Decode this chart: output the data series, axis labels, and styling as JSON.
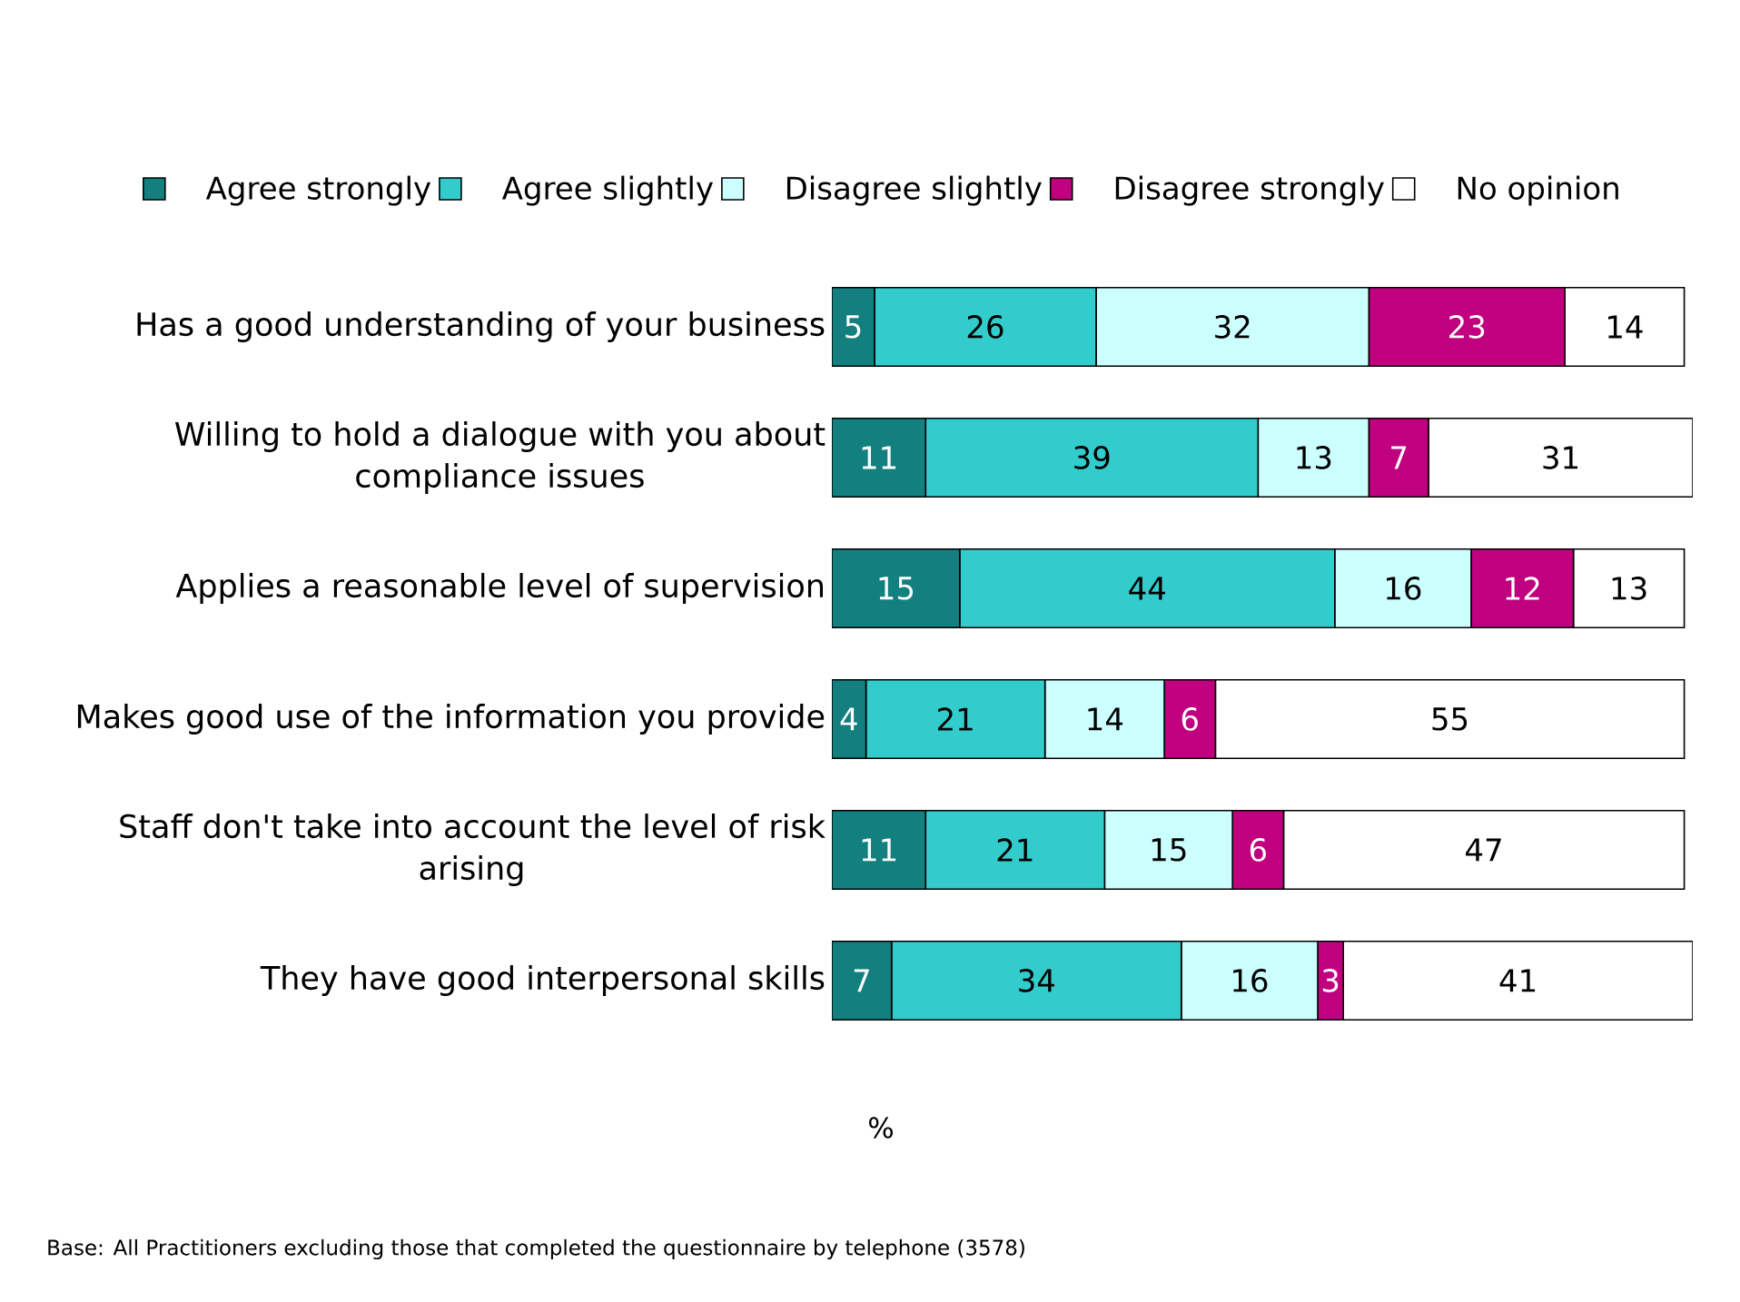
{
  "chart_data": {
    "type": "bar",
    "orientation": "horizontal",
    "stacked": true,
    "data_labels": true,
    "legend": "top",
    "xlabel": "%",
    "categories": [
      "Has a good understanding of your business",
      "Willing to hold a dialogue with you about compliance issues",
      "Applies a reasonable level of supervision",
      "Makes good use of the information you provide",
      "Staff don't take into account the level of risk arising",
      "They have good interpersonal skills"
    ],
    "series": [
      {
        "name": "Agree strongly",
        "color": "#137f7f",
        "values": [
          5,
          11,
          15,
          4,
          11,
          7
        ]
      },
      {
        "name": "Agree slightly",
        "color": "#33cccc",
        "values": [
          26,
          39,
          44,
          21,
          21,
          34
        ]
      },
      {
        "name": "Disagree slightly",
        "color": "#ccffff",
        "values": [
          32,
          13,
          16,
          14,
          15,
          16
        ]
      },
      {
        "name": "Disagree strongly",
        "color": "#c0007f",
        "values": [
          23,
          7,
          12,
          6,
          6,
          3
        ]
      },
      {
        "name": "No opinion",
        "color": "#ffffff",
        "values": [
          14,
          31,
          13,
          55,
          47,
          41
        ]
      }
    ],
    "annotations": [
      "Base: All Practitioners excluding those that completed the questionnaire by telephone (3578)"
    ]
  }
}
